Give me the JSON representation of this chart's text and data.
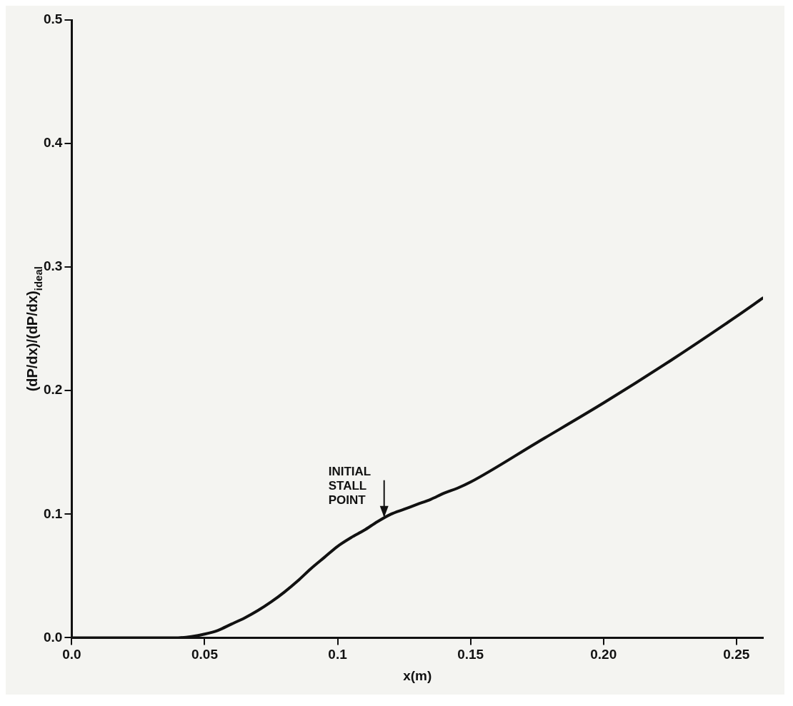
{
  "chart_data": {
    "type": "line",
    "xlabel": "x(m)",
    "ylabel": "(dP/dx)/(dP/dx)$_{ideal}$",
    "xlim": [
      0,
      0.26
    ],
    "xticks": [
      {
        "value": 0,
        "label": "0.0"
      },
      0.05,
      0.1,
      0.15,
      {
        "value": 0.2,
        "label": "0.20"
      },
      0.25
    ],
    "ylim": [
      0,
      0.5
    ],
    "yticks": [
      {
        "value": 0,
        "label": "0.0"
      },
      0.1,
      0.2,
      0.3,
      0.4,
      0.5
    ],
    "grid": false,
    "legend": false,
    "marker": "none",
    "line_style": "solid",
    "annotations": [
      {
        "text": "INITIAL\nSTALL\nPOINT",
        "x": 0.1175,
        "y": 0.094
      }
    ],
    "series": [
      {
        "color": "#111111",
        "x": [
          0,
          0.02,
          0.04,
          0.045,
          0.05,
          0.055,
          0.06,
          0.065,
          0.07,
          0.075,
          0.08,
          0.085,
          0.09,
          0.095,
          0.1,
          0.105,
          0.11,
          0.115,
          0.12,
          0.125,
          0.13,
          0.135,
          0.14,
          0.145,
          0.15,
          0.175,
          0.2,
          0.225,
          0.25,
          0.26
        ],
        "values": [
          0,
          0,
          0,
          0.001,
          0.003,
          0.006,
          0.011,
          0.016,
          0.022,
          0.029,
          0.037,
          0.046,
          0.056,
          0.065,
          0.074,
          0.081,
          0.087,
          0.094,
          0.1,
          0.104,
          0.108,
          0.112,
          0.117,
          0.121,
          0.126,
          0.158,
          0.19,
          0.224,
          0.26,
          0.275
        ]
      }
    ]
  }
}
